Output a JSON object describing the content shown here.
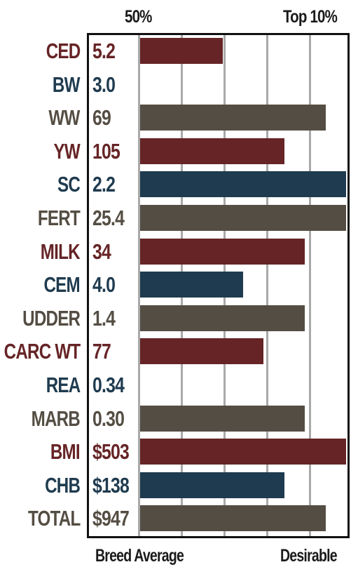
{
  "header": {
    "left_label": "50%",
    "right_label": "Top 10%"
  },
  "footer": {
    "left_label": "Breed Average",
    "right_label": "Desirable"
  },
  "colors": {
    "red": "#662426",
    "blue": "#1f3b4f",
    "brown": "#544d43",
    "grid": "#a9a9a9"
  },
  "chart_data": {
    "type": "bar",
    "orientation": "horizontal",
    "categories": [
      "CED",
      "BW",
      "WW",
      "YW",
      "SC",
      "FERT",
      "MILK",
      "CEM",
      "UDDER",
      "CARC WT",
      "REA",
      "MARB",
      "BMI",
      "CHB",
      "TOTAL"
    ],
    "value_labels": [
      "5.2",
      "3.0",
      "69",
      "105",
      "2.2",
      "25.4",
      "34",
      "4.0",
      "1.4",
      "77",
      "0.34",
      "0.30",
      "$503",
      "$138",
      "$947"
    ],
    "bar_values": [
      0.4,
      0,
      0.9,
      0.7,
      1.0,
      1.0,
      0.8,
      0.5,
      0.8,
      0.6,
      0,
      0.8,
      1.0,
      0.7,
      0.9
    ],
    "bar_scale": "0 = Breed Average (50%), 1 = Desirable (Top 10%)",
    "row_colors": [
      "red",
      "blue",
      "brown",
      "red",
      "blue",
      "brown",
      "red",
      "blue",
      "brown",
      "red",
      "blue",
      "brown",
      "red",
      "blue",
      "brown"
    ],
    "xlim": [
      0,
      1
    ],
    "grid": true
  }
}
